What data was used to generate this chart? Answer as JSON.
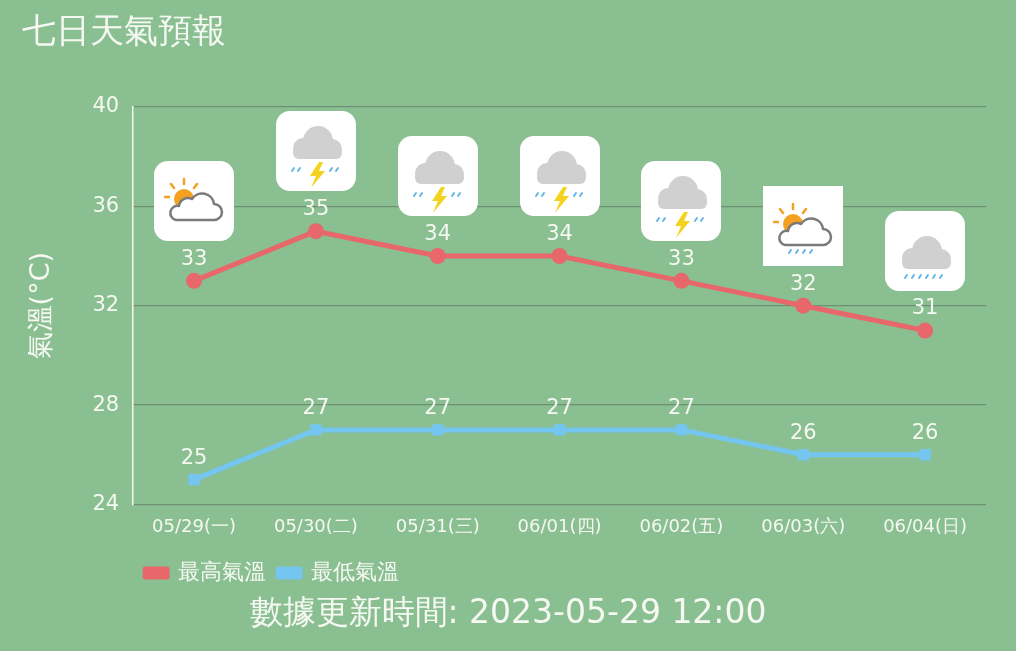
{
  "chart_data": {
    "type": "line",
    "title": "七日天氣預報",
    "ylabel": "氣溫(°C)",
    "categories": [
      "05/29(一)",
      "05/30(二)",
      "05/31(三)",
      "06/01(四)",
      "06/02(五)",
      "06/03(六)",
      "06/04(日)"
    ],
    "series": [
      {
        "name": "最高氣溫",
        "color": "#e8676a",
        "marker": "circle",
        "values": [
          33,
          35,
          34,
          34,
          33,
          32,
          31
        ]
      },
      {
        "name": "最低氣溫",
        "color": "#74c6f0",
        "marker": "square",
        "values": [
          25,
          27,
          27,
          27,
          27,
          26,
          26
        ]
      }
    ],
    "ylim": [
      24,
      40
    ],
    "yticks": [
      24,
      28,
      32,
      36,
      40
    ],
    "grid": "y",
    "legend": "bottom left",
    "data_labels": true,
    "line_style": "solid",
    "annotations": [
      "數據更新時間: 2023-05-29 12:00"
    ]
  }
}
